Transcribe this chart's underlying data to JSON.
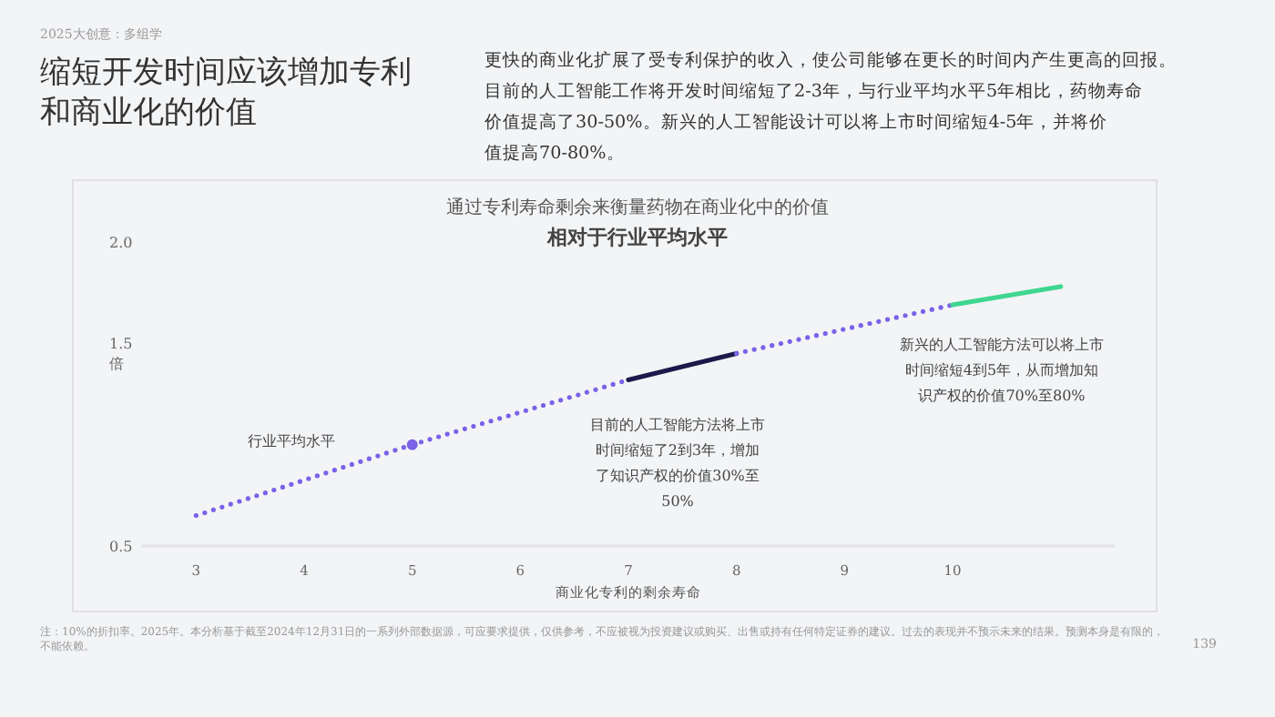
{
  "chart_data": {
    "type": "line",
    "title": "缩短开发时间应该增加专利和商业化的价值",
    "subtitle": "更快的商业化扩展了受专利保护的收入，使公司能够在更长的时间内产生更高的回报。目前的人工智能工作将开发时间缩短了2-3年，与行业平均水平5年相比，药物寿命价值提高了30-50%。新兴的人工智能设计可以将上市时间缩短4-5年，并将价值提高70-80%。",
    "xlabel": "商业化专利的剩余寿命",
    "ylabel": "倍",
    "xlim": [
      2.5,
      11.5
    ],
    "xticks": [
      3,
      4,
      5,
      6,
      7,
      8,
      9,
      10
    ],
    "ylim": [
      0.5,
      2.0
    ],
    "yticks": [
      0.5,
      1.5,
      {
        "value": 2,
        "label": "2.0"
      }
    ],
    "grid": false,
    "series": [
      {
        "line_style": "dotted",
        "color": "#7b61e8",
        "x": [
          3,
          5,
          7
        ],
        "values": [
          0.65,
          1.0,
          1.32
        ]
      },
      {
        "line_style": "solid",
        "color": "#1c1a4a",
        "x": [
          7,
          8
        ],
        "values": [
          1.32,
          1.45
        ]
      },
      {
        "line_style": "dotted",
        "color": "#7b61e8",
        "x": [
          8,
          10
        ],
        "values": [
          1.45,
          1.69
        ]
      },
      {
        "line_style": "solid",
        "color": "#3fd68f",
        "x": [
          10,
          11
        ],
        "values": [
          1.69,
          1.78
        ]
      },
      {
        "type": "scatter",
        "marker": "circle",
        "color": "#7b61e8",
        "x": [
          5
        ],
        "values": [
          1.0
        ]
      }
    ],
    "annotations": [
      "2025大创意：多组学",
      "通过专利寿命剩余来衡量药物在商业化中的价值",
      "相对于行业平均水平",
      "注：10%的折扣率。2025年。本分析基于截至2024年12月31日的一系列外部数据源，可应要求提供，仅供参考，不应被视为投资建议或购买、出售或持有任何特定证券的建议。过去的表现并不预示未来的结果。预测本身是有限的，不能依赖。",
      "139",
      "行业平均水平",
      "目前的人工智能方法将上市时间缩短了2到3年，增加了知识产权的价值30%至50%",
      "新兴的人工智能方法可以将上市时间缩短4到5年，从而增加知识产权的价值70%至80%"
    ]
  }
}
